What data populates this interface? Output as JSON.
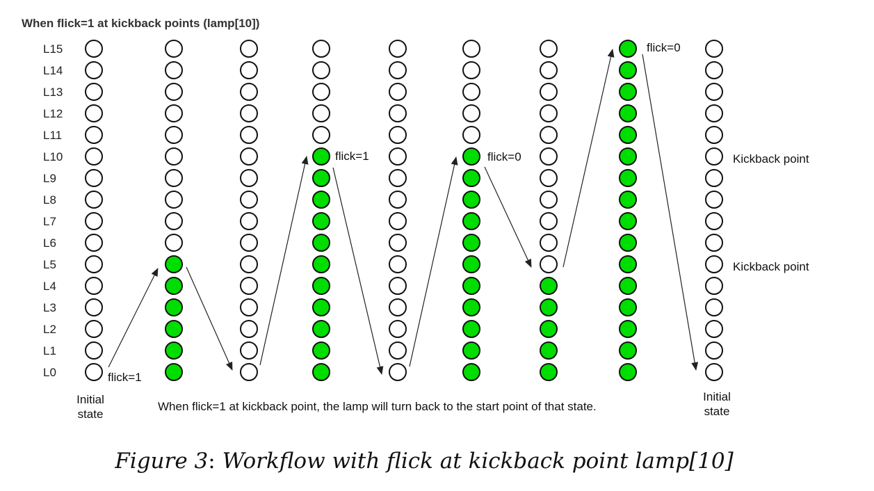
{
  "header": {
    "title": "When flick=1 at kickback points (lamp[10])"
  },
  "row_labels": [
    "L15",
    "L14",
    "L13",
    "L12",
    "L11",
    "L10",
    "L9",
    "L8",
    "L7",
    "L6",
    "L5",
    "L4",
    "L3",
    "L2",
    "L1",
    "L0"
  ],
  "colors": {
    "on": "#00dd00",
    "off": "#ffffff",
    "stroke": "#111111"
  },
  "columns": [
    {
      "lit_top": -1
    },
    {
      "lit_top": 5
    },
    {
      "lit_top": -1
    },
    {
      "lit_top": 10
    },
    {
      "lit_top": -1
    },
    {
      "lit_top": 10
    },
    {
      "lit_top": 4
    },
    {
      "lit_top": 15
    },
    {
      "lit_top": -1
    }
  ],
  "annotations": {
    "flick_a": "flick=1",
    "flick_b": "flick=1",
    "flick_c": "flick=0",
    "flick_d": "flick=0",
    "kickback_upper": "Kickback point",
    "kickback_lower": "Kickback point",
    "initial_left_line1": "Initial",
    "initial_left_line2": "state",
    "initial_right_line1": "Initial",
    "initial_right_line2": "state",
    "note": "When flick=1 at kickback point, the lamp will turn back to the start point of that state."
  },
  "caption": {
    "prefix": "Figure 3",
    "sep": ":",
    "text": "Workflow with flick at kickback point lamp[10]"
  }
}
